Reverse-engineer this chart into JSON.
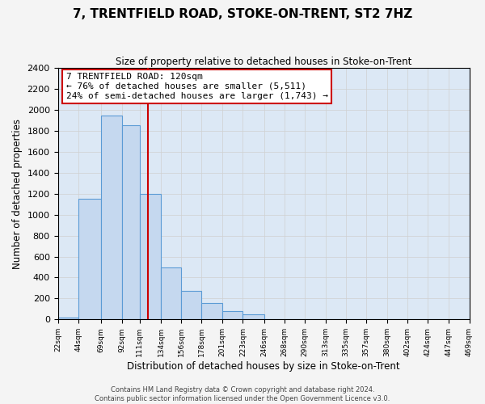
{
  "title": "7, TRENTFIELD ROAD, STOKE-ON-TRENT, ST2 7HZ",
  "subtitle": "Size of property relative to detached houses in Stoke-on-Trent",
  "xlabel": "Distribution of detached houses by size in Stoke-on-Trent",
  "ylabel": "Number of detached properties",
  "bar_edges": [
    22,
    44,
    69,
    92,
    111,
    134,
    156,
    178,
    201,
    223,
    246,
    268,
    290,
    313,
    335,
    357,
    380,
    402,
    424,
    447,
    469
  ],
  "bar_heights": [
    20,
    1150,
    1950,
    1850,
    1200,
    500,
    270,
    155,
    80,
    50,
    0,
    0,
    0,
    0,
    0,
    0,
    0,
    0,
    0,
    0
  ],
  "bar_color": "#c5d8ef",
  "bar_edge_color": "#5b9bd5",
  "property_line_x": 120,
  "property_line_color": "#cc0000",
  "annotation_text": "7 TRENTFIELD ROAD: 120sqm\n← 76% of detached houses are smaller (5,511)\n24% of semi-detached houses are larger (1,743) →",
  "annotation_box_color": "#ffffff",
  "annotation_box_edge": "#cc0000",
  "ylim": [
    0,
    2400
  ],
  "yticks": [
    0,
    200,
    400,
    600,
    800,
    1000,
    1200,
    1400,
    1600,
    1800,
    2000,
    2200,
    2400
  ],
  "xtick_labels": [
    "22sqm",
    "44sqm",
    "69sqm",
    "92sqm",
    "111sqm",
    "134sqm",
    "156sqm",
    "178sqm",
    "201sqm",
    "223sqm",
    "246sqm",
    "268sqm",
    "290sqm",
    "313sqm",
    "335sqm",
    "357sqm",
    "380sqm",
    "402sqm",
    "424sqm",
    "447sqm",
    "469sqm"
  ],
  "footer1": "Contains HM Land Registry data © Crown copyright and database right 2024.",
  "footer2": "Contains public sector information licensed under the Open Government Licence v3.0.",
  "grid_color": "#d0d0d0",
  "bg_color": "#dce8f5",
  "fig_bg_color": "#f4f4f4"
}
